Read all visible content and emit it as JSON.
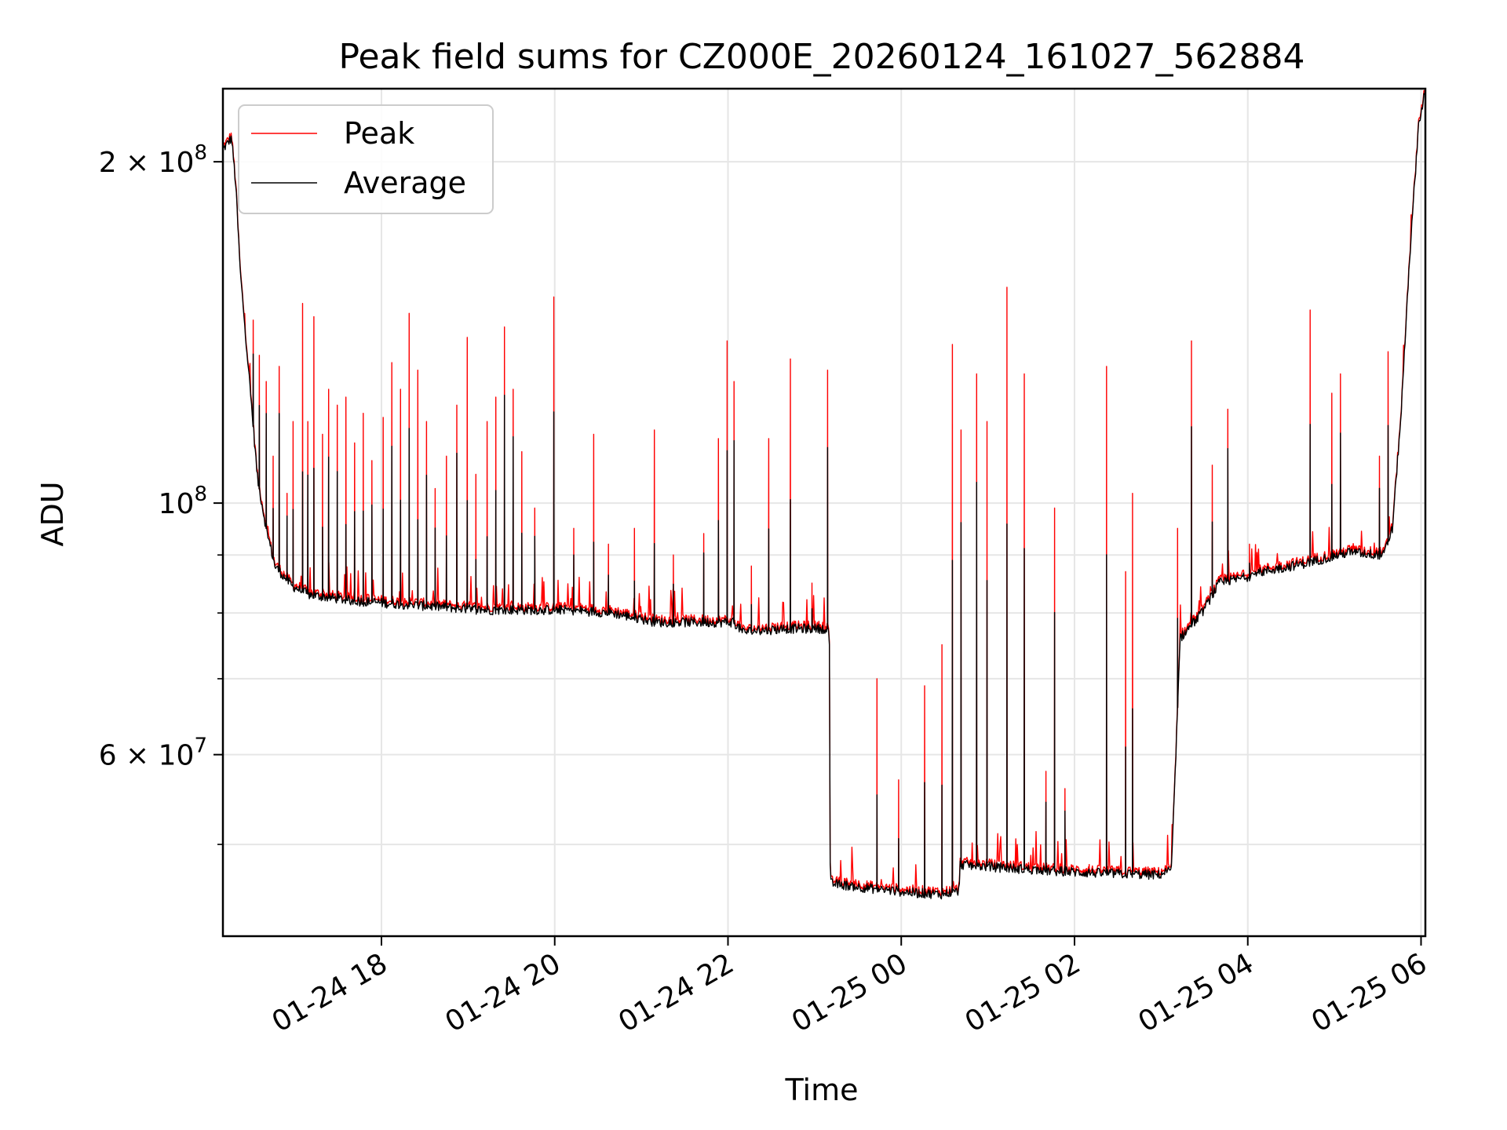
{
  "chart_data": {
    "type": "line",
    "title": "Peak field sums for CZ000E_20260124_161027_562884",
    "xlabel": "Time",
    "ylabel": "ADU",
    "yscale": "log",
    "grid": true,
    "legend_position": "upper-left",
    "x_unit": "hours since 01-24 16:10",
    "xlim": [
      0,
      13.88
    ],
    "ylim": [
      41500000,
      232000000
    ],
    "x_ticks": [
      {
        "x": 1.83,
        "label": "01-24 18"
      },
      {
        "x": 3.83,
        "label": "01-24 20"
      },
      {
        "x": 5.83,
        "label": "01-24 22"
      },
      {
        "x": 7.83,
        "label": "01-25 00"
      },
      {
        "x": 9.83,
        "label": "01-25 02"
      },
      {
        "x": 11.83,
        "label": "01-25 04"
      },
      {
        "x": 13.83,
        "label": "01-25 06"
      }
    ],
    "y_major_ticks": [
      {
        "y": 60000000,
        "mantissa": "6",
        "exponent": "7"
      },
      {
        "y": 100000000,
        "mantissa": "",
        "exponent": "8"
      },
      {
        "y": 200000000,
        "mantissa": "2",
        "exponent": "8"
      }
    ],
    "y_minor_ticks": [
      50000000,
      70000000,
      80000000,
      90000000
    ],
    "baseline_points": [
      [
        0.0,
        205000000
      ],
      [
        0.1,
        210000000
      ],
      [
        0.15,
        190000000
      ],
      [
        0.2,
        160000000
      ],
      [
        0.3,
        130000000
      ],
      [
        0.4,
        105000000
      ],
      [
        0.5,
        95000000
      ],
      [
        0.6,
        88000000
      ],
      [
        0.8,
        84500000
      ],
      [
        1.0,
        83000000
      ],
      [
        1.5,
        82000000
      ],
      [
        2.0,
        81500000
      ],
      [
        2.5,
        81000000
      ],
      [
        3.0,
        80500000
      ],
      [
        3.5,
        80500000
      ],
      [
        4.0,
        80500000
      ],
      [
        4.5,
        80000000
      ],
      [
        5.0,
        78500000
      ],
      [
        5.5,
        78500000
      ],
      [
        5.9,
        78500000
      ],
      [
        6.0,
        77000000
      ],
      [
        6.5,
        77500000
      ],
      [
        7.0,
        77500000
      ],
      [
        7.01,
        46200000
      ],
      [
        7.5,
        45700000
      ],
      [
        8.0,
        45300000
      ],
      [
        8.3,
        45200000
      ],
      [
        8.5,
        45500000
      ],
      [
        8.51,
        48000000
      ],
      [
        9.0,
        47700000
      ],
      [
        9.5,
        47400000
      ],
      [
        10.0,
        47200000
      ],
      [
        10.8,
        47000000
      ],
      [
        10.95,
        47500000
      ],
      [
        11.05,
        76000000
      ],
      [
        11.3,
        80000000
      ],
      [
        11.5,
        85000000
      ],
      [
        11.8,
        86000000
      ],
      [
        12.0,
        87000000
      ],
      [
        12.5,
        88500000
      ],
      [
        13.0,
        90500000
      ],
      [
        13.4,
        90000000
      ],
      [
        13.5,
        95000000
      ],
      [
        13.6,
        120000000
      ],
      [
        13.7,
        165000000
      ],
      [
        13.8,
        215000000
      ],
      [
        13.88,
        232000000
      ]
    ],
    "peak_spikes": [
      [
        0.35,
        145000000
      ],
      [
        0.42,
        135000000
      ],
      [
        0.5,
        128000000
      ],
      [
        0.58,
        110000000
      ],
      [
        0.65,
        132000000
      ],
      [
        0.74,
        102000000
      ],
      [
        0.81,
        118000000
      ],
      [
        0.92,
        150000000
      ],
      [
        0.98,
        118000000
      ],
      [
        1.05,
        146000000
      ],
      [
        1.15,
        115000000
      ],
      [
        1.22,
        126000000
      ],
      [
        1.32,
        122000000
      ],
      [
        1.42,
        124000000
      ],
      [
        1.52,
        113000000
      ],
      [
        1.62,
        120000000
      ],
      [
        1.72,
        109000000
      ],
      [
        1.85,
        119000000
      ],
      [
        1.95,
        133000000
      ],
      [
        2.05,
        126000000
      ],
      [
        2.15,
        147000000
      ],
      [
        2.25,
        131000000
      ],
      [
        2.35,
        118000000
      ],
      [
        2.45,
        103000000
      ],
      [
        2.58,
        110000000
      ],
      [
        2.7,
        122000000
      ],
      [
        2.82,
        140000000
      ],
      [
        2.92,
        106000000
      ],
      [
        3.05,
        118000000
      ],
      [
        3.15,
        124000000
      ],
      [
        3.25,
        143000000
      ],
      [
        3.35,
        126000000
      ],
      [
        3.45,
        111000000
      ],
      [
        3.6,
        99000000
      ],
      [
        3.82,
        152000000
      ],
      [
        4.05,
        95000000
      ],
      [
        4.28,
        115000000
      ],
      [
        4.45,
        92000000
      ],
      [
        4.75,
        95000000
      ],
      [
        4.98,
        116000000
      ],
      [
        5.2,
        90000000
      ],
      [
        5.55,
        94000000
      ],
      [
        5.72,
        114000000
      ],
      [
        5.82,
        139000000
      ],
      [
        5.9,
        128000000
      ],
      [
        6.1,
        88000000
      ],
      [
        6.3,
        114000000
      ],
      [
        6.55,
        134000000
      ],
      [
        6.8,
        85000000
      ],
      [
        6.98,
        131000000
      ],
      [
        7.55,
        70000000
      ],
      [
        7.8,
        57000000
      ],
      [
        8.1,
        69000000
      ],
      [
        8.3,
        75000000
      ],
      [
        8.42,
        138000000
      ],
      [
        8.52,
        116000000
      ],
      [
        8.7,
        130000000
      ],
      [
        8.82,
        118000000
      ],
      [
        9.05,
        155000000
      ],
      [
        9.25,
        130000000
      ],
      [
        9.5,
        58000000
      ],
      [
        9.6,
        99000000
      ],
      [
        9.72,
        56000000
      ],
      [
        10.0,
        48000000
      ],
      [
        10.2,
        132000000
      ],
      [
        10.42,
        87000000
      ],
      [
        10.5,
        102000000
      ],
      [
        11.02,
        95000000
      ],
      [
        11.18,
        139000000
      ],
      [
        11.42,
        108000000
      ],
      [
        11.6,
        121000000
      ],
      [
        11.85,
        92000000
      ],
      [
        12.55,
        148000000
      ],
      [
        12.8,
        125000000
      ],
      [
        12.9,
        130000000
      ],
      [
        13.35,
        110000000
      ],
      [
        13.45,
        136000000
      ]
    ],
    "series": [
      {
        "name": "Peak",
        "color": "#ff0000"
      },
      {
        "name": "Average",
        "color": "#000000"
      }
    ]
  }
}
